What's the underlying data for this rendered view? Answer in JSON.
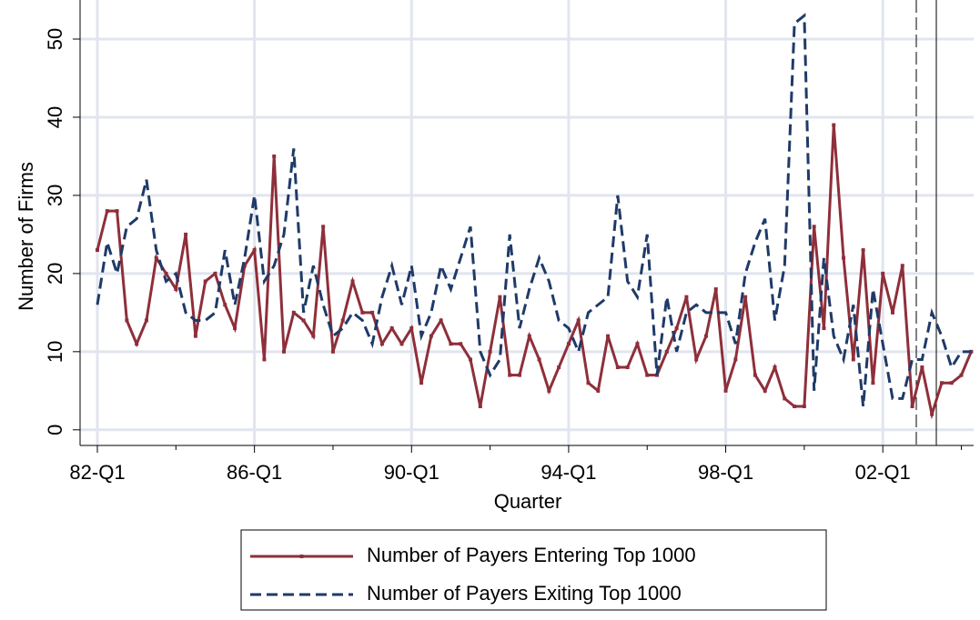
{
  "chart_data": {
    "type": "line",
    "x_label": "Quarter",
    "y_label": "Number of Firms",
    "categories": [
      "82-Q1",
      null,
      null,
      null,
      null,
      null,
      null,
      null,
      null,
      null,
      null,
      null,
      null,
      null,
      null,
      null,
      "86-Q1",
      null,
      null,
      null,
      null,
      null,
      null,
      null,
      null,
      null,
      null,
      null,
      null,
      null,
      null,
      null,
      "90-Q1",
      null,
      null,
      null,
      null,
      null,
      null,
      null,
      null,
      null,
      null,
      null,
      null,
      null,
      null,
      null,
      "94-Q1",
      null,
      null,
      null,
      null,
      null,
      null,
      null,
      null,
      null,
      null,
      null,
      null,
      null,
      null,
      null,
      "98-Q1",
      null,
      null,
      null,
      null,
      null,
      null,
      null,
      null,
      null,
      null,
      null,
      null,
      null,
      null,
      null,
      "02-Q1",
      null,
      null,
      null,
      null,
      null,
      null,
      null,
      null,
      null
    ],
    "series": [
      {
        "name": "Number of Payers Entering Top 1000",
        "color": "#8e2f3a",
        "dash": "solid",
        "marker": true,
        "values": [
          23,
          28,
          28,
          14,
          11,
          14,
          22,
          20,
          18,
          25,
          12,
          19,
          20,
          16,
          13,
          21,
          23,
          9,
          35,
          10,
          15,
          14,
          12,
          26,
          10,
          14,
          19,
          15,
          15,
          11,
          13,
          11,
          13,
          6,
          12,
          14,
          11,
          11,
          9,
          3,
          10,
          17,
          7,
          7,
          12,
          9,
          5,
          8,
          11,
          14,
          6,
          5,
          12,
          8,
          8,
          11,
          7,
          7,
          10,
          13,
          17,
          9,
          12,
          18,
          5,
          9,
          17,
          7,
          5,
          8,
          4,
          3,
          3,
          26,
          13,
          39,
          22,
          9,
          23,
          6,
          20,
          15,
          21,
          3,
          8,
          2,
          6,
          6,
          7,
          10
        ]
      },
      {
        "name": "Number of Payers Exiting Top 1000",
        "color": "#1f3a68",
        "dash": "dashed",
        "marker": false,
        "values": [
          16,
          24,
          20,
          26,
          27,
          32,
          23,
          19,
          20,
          15,
          14,
          14,
          15,
          23,
          16,
          22,
          30,
          19,
          21,
          25,
          36,
          15,
          21,
          16,
          12,
          13,
          15,
          14,
          11,
          17,
          21,
          16,
          21,
          12,
          15,
          21,
          18,
          22,
          26,
          10,
          7,
          9,
          25,
          13,
          18,
          22,
          19,
          14,
          13,
          10,
          15,
          16,
          17,
          30,
          19,
          17,
          25,
          7,
          17,
          10,
          15,
          16,
          15,
          15,
          15,
          11,
          20,
          24,
          27,
          14,
          21,
          52,
          53,
          5,
          22,
          12,
          9,
          16,
          3,
          18,
          11,
          4,
          4,
          9,
          9,
          15,
          12,
          8,
          10,
          10
        ]
      }
    ],
    "ylim": [
      -2,
      55
    ],
    "yticks": [
      0,
      10,
      20,
      30,
      40,
      50
    ],
    "grid": true
  }
}
